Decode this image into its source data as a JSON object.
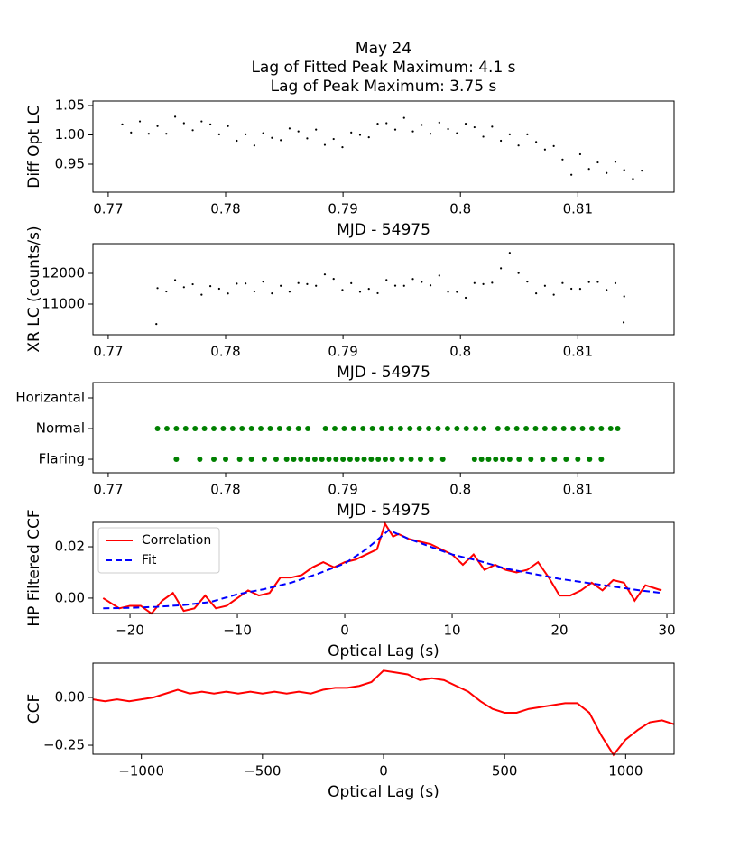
{
  "chart_data": [
    {
      "type": "scatter",
      "title": [
        "May 24",
        "Lag of Fitted Peak Maximum: 4.1 s",
        "Lag of Peak Maximum: 3.75 s"
      ],
      "xlabel": "MJD - 54975",
      "ylabel": "Diff Opt LC",
      "color": "#000000",
      "x": [
        0.7712,
        0.77195,
        0.7727,
        0.77345,
        0.7742,
        0.77495,
        0.7757,
        0.77645,
        0.7772,
        0.77795,
        0.7787,
        0.77945,
        0.7802,
        0.78095,
        0.7817,
        0.78245,
        0.7832,
        0.78395,
        0.7847,
        0.78545,
        0.7862,
        0.78695,
        0.7877,
        0.78845,
        0.7892,
        0.78995,
        0.7907,
        0.79145,
        0.7922,
        0.79295,
        0.7937,
        0.79445,
        0.7952,
        0.79595,
        0.7967,
        0.79745,
        0.7982,
        0.79895,
        0.7997,
        0.80045,
        0.8012,
        0.80195,
        0.8027,
        0.80345,
        0.8042,
        0.80495,
        0.8057,
        0.80645,
        0.8072,
        0.80795,
        0.8087,
        0.80945,
        0.8102,
        0.81095,
        0.8117,
        0.81245,
        0.8132,
        0.81395,
        0.8147,
        0.81545
      ],
      "values": [
        1.018,
        1.004,
        1.023,
        1.002,
        1.015,
        1.002,
        1.031,
        1.02,
        1.008,
        1.023,
        1.018,
        1.001,
        1.015,
        0.99,
        1.001,
        0.982,
        1.003,
        0.995,
        0.991,
        1.011,
        1.006,
        0.994,
        1.009,
        0.983,
        0.993,
        0.979,
        1.004,
        1.0,
        0.996,
        1.019,
        1.02,
        1.009,
        1.029,
        1.006,
        1.017,
        1.002,
        1.021,
        1.01,
        1.003,
        1.019,
        1.013,
        0.997,
        1.014,
        0.99,
        1.001,
        0.982,
        1.001,
        0.988,
        0.975,
        0.981,
        0.958,
        0.932,
        0.967,
        0.942,
        0.953,
        0.935,
        0.954,
        0.94,
        0.925,
        0.939
      ],
      "xlim": [
        0.7687,
        0.8182
      ],
      "xticks": [
        0.77,
        0.78,
        0.79,
        0.8,
        0.81
      ],
      "ylim": [
        0.9023,
        1.0577
      ],
      "yticks": [
        0.95,
        {
          "value": 1,
          "label": "1.00"
        },
        1.05
      ]
    },
    {
      "type": "scatter",
      "xlabel": "MJD - 54975",
      "ylabel": "XR LC (counts/s)",
      "color": "#000000",
      "x": [
        0.7741,
        0.7742,
        0.77495,
        0.7757,
        0.77645,
        0.7772,
        0.77795,
        0.7787,
        0.77945,
        0.7802,
        0.78095,
        0.7817,
        0.78245,
        0.7832,
        0.78395,
        0.7847,
        0.78545,
        0.7862,
        0.78695,
        0.7877,
        0.78845,
        0.7892,
        0.78995,
        0.7907,
        0.79145,
        0.7922,
        0.79295,
        0.7937,
        0.79445,
        0.7952,
        0.79595,
        0.7967,
        0.79745,
        0.7982,
        0.79895,
        0.7997,
        0.80045,
        0.8012,
        0.80195,
        0.8027,
        0.80345,
        0.8042,
        0.80495,
        0.8057,
        0.80645,
        0.8072,
        0.80795,
        0.8087,
        0.80945,
        0.8102,
        0.81095,
        0.8117,
        0.81245,
        0.8132,
        0.81395,
        0.8139
      ],
      "values": [
        10350,
        11520,
        11410,
        11780,
        11550,
        11645,
        11305,
        11585,
        11500,
        11345,
        11665,
        11670,
        11410,
        11730,
        11350,
        11595,
        11405,
        11685,
        11650,
        11595,
        11965,
        11820,
        11460,
        11680,
        11400,
        11495,
        11355,
        11785,
        11600,
        11595,
        11815,
        11720,
        11610,
        11930,
        11400,
        11395,
        11205,
        11685,
        11650,
        11695,
        12165,
        12670,
        12010,
        11730,
        11350,
        11595,
        11305,
        11685,
        11500,
        11495,
        11715,
        11720,
        11460,
        11680,
        11250,
        10400
      ],
      "xlim": [
        0.7687,
        0.8182
      ],
      "xticks": [
        0.77,
        0.78,
        0.79,
        0.8,
        0.81
      ],
      "ylim": [
        10000,
        12970
      ],
      "yticks": [
        11000,
        12000
      ]
    },
    {
      "type": "scatter",
      "xlabel": "MJD - 54975",
      "series": [
        {
          "color": "#008000",
          "x": [
            0.7742,
            0.775,
            0.7758,
            0.7766,
            0.7774,
            0.7782,
            0.779,
            0.7798,
            0.7806,
            0.7814,
            0.7822,
            0.783,
            0.7838,
            0.7846,
            0.7854,
            0.7862,
            0.787,
            0.7885,
            0.7893,
            0.7901,
            0.7909,
            0.7917,
            0.7925,
            0.7933,
            0.7941,
            0.7949,
            0.7957,
            0.7965,
            0.7973,
            0.7981,
            0.7989,
            0.7997,
            0.8005,
            0.8013,
            0.802,
            0.8032,
            0.804,
            0.8048,
            0.8056,
            0.8064,
            0.8072,
            0.808,
            0.8088,
            0.8096,
            0.8104,
            0.8112,
            0.812,
            0.8128,
            0.8134
          ],
          "values": [
            1,
            1,
            1,
            1,
            1,
            1,
            1,
            1,
            1,
            1,
            1,
            1,
            1,
            1,
            1,
            1,
            1,
            1,
            1,
            1,
            1,
            1,
            1,
            1,
            1,
            1,
            1,
            1,
            1,
            1,
            1,
            1,
            1,
            1,
            1,
            1,
            1,
            1,
            1,
            1,
            1,
            1,
            1,
            1,
            1,
            1,
            1,
            1,
            1
          ]
        },
        {
          "color": "#008000",
          "x": [
            0.7758,
            0.7778,
            0.779,
            0.78,
            0.7812,
            0.7822,
            0.7833,
            0.7843,
            0.7852,
            0.7858,
            0.7864,
            0.787,
            0.7876,
            0.7882,
            0.7888,
            0.7894,
            0.79,
            0.7906,
            0.7912,
            0.7918,
            0.7924,
            0.793,
            0.7936,
            0.7942,
            0.795,
            0.7958,
            0.7966,
            0.7975,
            0.7985,
            0.8012,
            0.8018,
            0.8024,
            0.803,
            0.8036,
            0.8042,
            0.805,
            0.806,
            0.807,
            0.808,
            0.809,
            0.81,
            0.811,
            0.812
          ],
          "values": [
            0,
            0,
            0,
            0,
            0,
            0,
            0,
            0,
            0,
            0,
            0,
            0,
            0,
            0,
            0,
            0,
            0,
            0,
            0,
            0,
            0,
            0,
            0,
            0,
            0,
            0,
            0,
            0,
            0,
            0,
            0,
            0,
            0,
            0,
            0,
            0,
            0,
            0,
            0,
            0,
            0,
            0,
            0
          ]
        }
      ],
      "xlim": [
        0.7687,
        0.8182
      ],
      "xticks": [
        0.77,
        0.78,
        0.79,
        0.8,
        0.81
      ],
      "ylim": [
        -0.44,
        2.5
      ],
      "yticks": [
        {
          "value": 0,
          "label": "Flaring"
        },
        {
          "value": 1,
          "label": "Normal"
        },
        {
          "value": 2,
          "label": "Horizantal"
        }
      ]
    },
    {
      "type": "line",
      "xlabel": "Optical Lag (s)",
      "ylabel": "HP Filtered CCF",
      "legend": "upper left",
      "series": [
        {
          "name": "Correlation",
          "color": "#ff0000",
          "linestyle": "solid",
          "x": [
            -22.5,
            -21,
            -20,
            -19,
            -18,
            -17,
            -16,
            -15,
            -14,
            -13,
            -12,
            -11,
            -10,
            -9,
            -8,
            -7,
            -6,
            -5,
            -4,
            -3,
            -2,
            -1,
            0,
            1,
            2,
            3,
            3.75,
            4.5,
            5,
            6,
            7,
            8,
            9,
            10,
            11,
            12,
            13,
            14,
            15,
            16,
            17,
            18,
            19,
            20,
            21,
            22,
            23,
            24,
            25,
            26,
            27,
            28,
            29.5
          ],
          "values": [
            0,
            -0.004,
            -0.003,
            -0.003,
            -0.006,
            -0.001,
            0.002,
            -0.005,
            -0.004,
            0.001,
            -0.004,
            -0.003,
            0,
            0.003,
            0.001,
            0.002,
            0.008,
            0.008,
            0.009,
            0.012,
            0.014,
            0.012,
            0.014,
            0.015,
            0.017,
            0.019,
            0.029,
            0.024,
            0.025,
            0.023,
            0.022,
            0.021,
            0.019,
            0.017,
            0.013,
            0.017,
            0.011,
            0.013,
            0.011,
            0.01,
            0.011,
            0.014,
            0.008,
            0.001,
            0.001,
            0.003,
            0.006,
            0.003,
            0.007,
            0.006,
            -0.001,
            0.005,
            0.003
          ]
        },
        {
          "name": "Fit",
          "color": "#0000ff",
          "linestyle": "dashed",
          "x": [
            -22.5,
            -20,
            -17.5,
            -15,
            -12.5,
            -10,
            -7.5,
            -5,
            -2.5,
            0,
            2,
            4.1,
            6,
            8,
            10,
            12.5,
            15,
            17.5,
            20,
            22.5,
            25,
            27.5,
            29.5
          ],
          "values": [
            -0.004,
            -0.0038,
            -0.0034,
            -0.0027,
            -0.0015,
            0.0015,
            0.0035,
            0.006,
            0.0095,
            0.0135,
            0.019,
            0.0265,
            0.023,
            0.02,
            0.017,
            0.0145,
            0.0115,
            0.0095,
            0.0075,
            0.006,
            0.0045,
            0.003,
            0.002
          ]
        }
      ],
      "xlim": [
        -23.45,
        30.67
      ],
      "xticks": [
        {
          "value": -20,
          "label": "−20"
        },
        {
          "value": -10,
          "label": "−10"
        },
        0,
        10,
        20,
        30
      ],
      "ylim": [
        -0.006,
        0.0295
      ],
      "yticks": [
        {
          "value": 0,
          "label": "0.00"
        },
        0.02
      ]
    },
    {
      "type": "line",
      "xlabel": "Optical Lag (s)",
      "ylabel": "CCF",
      "series": [
        {
          "color": "#ff0000",
          "linestyle": "solid",
          "x": [
            -1200,
            -1150,
            -1100,
            -1050,
            -1000,
            -950,
            -900,
            -850,
            -800,
            -750,
            -700,
            -650,
            -600,
            -550,
            -500,
            -450,
            -400,
            -350,
            -300,
            -250,
            -200,
            -150,
            -100,
            -50,
            0,
            50,
            100,
            150,
            200,
            250,
            300,
            350,
            400,
            450,
            500,
            550,
            600,
            650,
            700,
            750,
            800,
            850,
            900,
            950,
            1000,
            1050,
            1100,
            1150,
            1200
          ],
          "values": [
            -0.01,
            -0.02,
            -0.01,
            -0.02,
            -0.01,
            0,
            0.02,
            0.04,
            0.02,
            0.03,
            0.02,
            0.03,
            0.02,
            0.03,
            0.02,
            0.03,
            0.02,
            0.03,
            0.02,
            0.04,
            0.05,
            0.05,
            0.06,
            0.08,
            0.14,
            0.13,
            0.12,
            0.09,
            0.1,
            0.09,
            0.06,
            0.03,
            -0.02,
            -0.06,
            -0.08,
            -0.08,
            -0.06,
            -0.05,
            -0.04,
            -0.03,
            -0.03,
            -0.08,
            -0.2,
            -0.3,
            -0.22,
            -0.17,
            -0.13,
            -0.12,
            -0.14
          ]
        }
      ],
      "xlim": [
        -1200,
        1200
      ],
      "xticks": [
        {
          "value": -1000,
          "label": "−1000"
        },
        {
          "value": -500,
          "label": "−500"
        },
        0,
        500,
        1000
      ],
      "ylim": [
        -0.297,
        0.179
      ],
      "yticks": [
        {
          "value": -0.25,
          "label": "−0.25"
        },
        {
          "value": 0,
          "label": "0.00"
        }
      ]
    }
  ]
}
